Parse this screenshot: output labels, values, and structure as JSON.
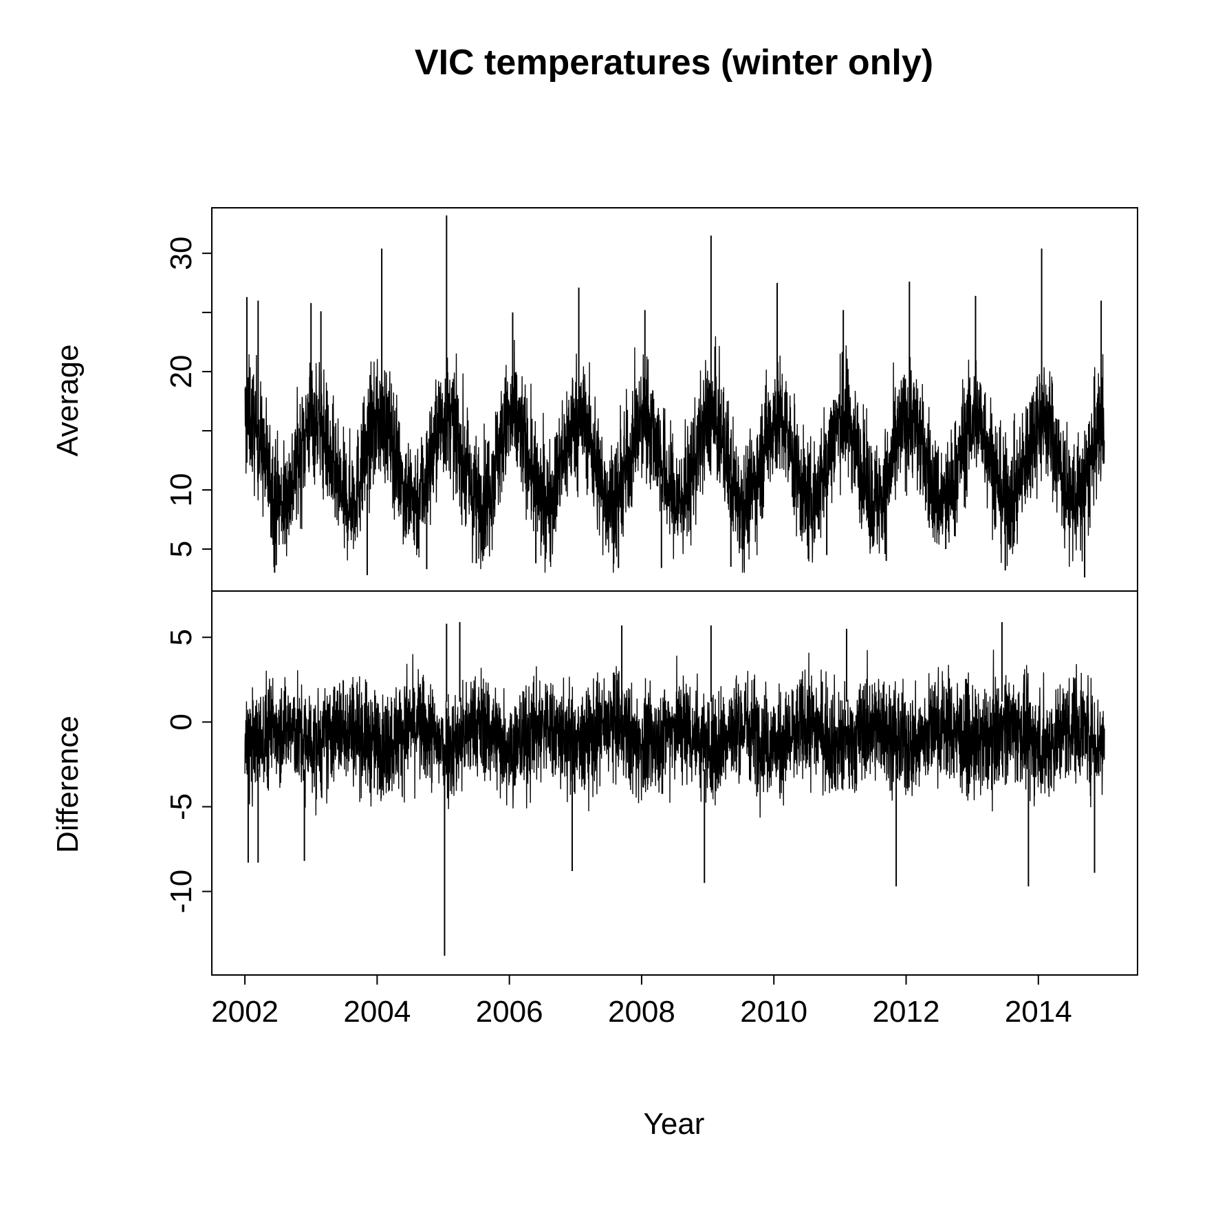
{
  "chart_data": {
    "type": "line",
    "title": "VIC temperatures (winter only)",
    "xlabel": "Year",
    "x_ticks": [
      "2002",
      "2004",
      "2006",
      "2008",
      "2010",
      "2012",
      "2014"
    ],
    "xlim": [
      2001.5,
      2015.5
    ],
    "line_color": "#000000",
    "panels": [
      {
        "name": "average",
        "ylabel": "Average",
        "y_ticks": [
          "5",
          "10",
          "20",
          "30"
        ],
        "ylim": [
          2.5,
          32.8
        ],
        "series": {
          "x_start": 2002.0,
          "x_end": 2015.0,
          "baseline": 12.5,
          "seasonal_amplitude": 3.5,
          "peak_phase": 0.05,
          "noise_low": 3.5,
          "noise_high": 4.5,
          "spikes": [
            {
              "x": 2002.03,
              "y": 26.3
            },
            {
              "x": 2002.2,
              "y": 26.0
            },
            {
              "x": 2002.45,
              "y": 3.0
            },
            {
              "x": 2003.0,
              "y": 25.8
            },
            {
              "x": 2003.15,
              "y": 25.1
            },
            {
              "x": 2003.85,
              "y": 2.8
            },
            {
              "x": 2004.07,
              "y": 30.4
            },
            {
              "x": 2004.75,
              "y": 3.3
            },
            {
              "x": 2005.05,
              "y": 33.2
            },
            {
              "x": 2005.5,
              "y": 3.8
            },
            {
              "x": 2006.05,
              "y": 25.0
            },
            {
              "x": 2006.4,
              "y": 3.8
            },
            {
              "x": 2007.05,
              "y": 27.1
            },
            {
              "x": 2007.65,
              "y": 3.4
            },
            {
              "x": 2008.05,
              "y": 25.2
            },
            {
              "x": 2008.3,
              "y": 3.4
            },
            {
              "x": 2009.05,
              "y": 31.5
            },
            {
              "x": 2009.35,
              "y": 3.5
            },
            {
              "x": 2010.05,
              "y": 27.5
            },
            {
              "x": 2010.8,
              "y": 4.5
            },
            {
              "x": 2011.05,
              "y": 25.2
            },
            {
              "x": 2011.7,
              "y": 4.0
            },
            {
              "x": 2012.05,
              "y": 27.6
            },
            {
              "x": 2012.6,
              "y": 5.0
            },
            {
              "x": 2013.05,
              "y": 26.4
            },
            {
              "x": 2013.5,
              "y": 3.2
            },
            {
              "x": 2014.05,
              "y": 30.4
            },
            {
              "x": 2014.7,
              "y": 2.6
            },
            {
              "x": 2014.95,
              "y": 26.0
            }
          ]
        }
      },
      {
        "name": "difference",
        "ylabel": "Difference",
        "y_ticks": [
          "5",
          "0",
          "-5",
          "-10"
        ],
        "ylim": [
          -14.2,
          7.0
        ],
        "series": {
          "x_start": 2002.0,
          "x_end": 2015.0,
          "baseline": -0.8,
          "seasonal_amplitude": 0.6,
          "peak_phase": 0.55,
          "noise_low": 2.2,
          "noise_high": 2.8,
          "spikes": [
            {
              "x": 2002.05,
              "y": -8.3
            },
            {
              "x": 2002.2,
              "y": -8.3
            },
            {
              "x": 2002.9,
              "y": -8.2
            },
            {
              "x": 2005.02,
              "y": -13.8
            },
            {
              "x": 2005.05,
              "y": 5.8
            },
            {
              "x": 2005.25,
              "y": 5.9
            },
            {
              "x": 2006.95,
              "y": -8.8
            },
            {
              "x": 2007.7,
              "y": 5.7
            },
            {
              "x": 2008.95,
              "y": -9.5
            },
            {
              "x": 2009.05,
              "y": 5.7
            },
            {
              "x": 2011.1,
              "y": 5.5
            },
            {
              "x": 2011.85,
              "y": -9.7
            },
            {
              "x": 2013.45,
              "y": 5.9
            },
            {
              "x": 2013.85,
              "y": -9.7
            },
            {
              "x": 2014.85,
              "y": -8.9
            }
          ]
        }
      }
    ]
  }
}
